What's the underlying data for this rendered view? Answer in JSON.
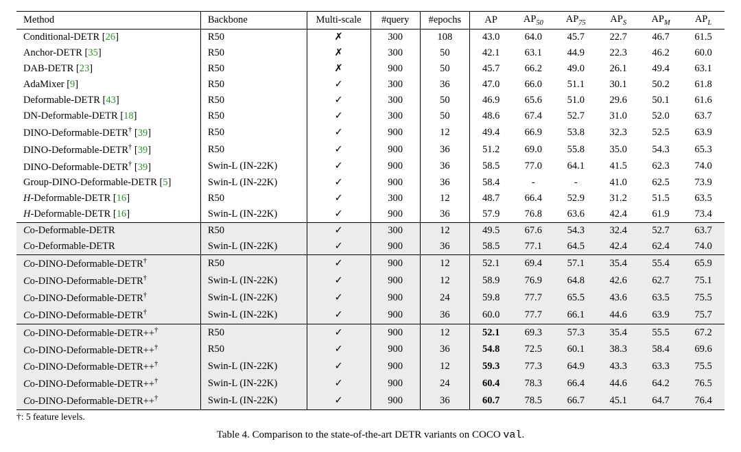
{
  "headers": {
    "method": "Method",
    "backbone": "Backbone",
    "multiscale": "Multi-scale",
    "query": "#query",
    "epochs": "#epochs",
    "ap": "AP",
    "ap50_pre": "AP",
    "ap50_sub": "50",
    "ap75_pre": "AP",
    "ap75_sub": "75",
    "aps_pre": "AP",
    "aps_sub": "S",
    "apm_pre": "AP",
    "apm_sub": "M",
    "apl_pre": "AP",
    "apl_sub": "L"
  },
  "symbols": {
    "check": "✓",
    "cross": "✗",
    "dagger": "†",
    "dash": "-"
  },
  "caption": {
    "pre": "Table 4. Comparison to the state-of-the-art DETR variants on COCO ",
    "code": "val",
    "post": "."
  },
  "footnote": "†: 5 feature levels.",
  "groups": [
    {
      "shade": false,
      "rows": [
        {
          "method_html": "Conditional-DETR [<span class='cite'>26</span>]",
          "backbone": "R50",
          "ms": "cross",
          "query": "300",
          "epochs": "108",
          "ap": "43.0",
          "ap50": "64.0",
          "ap75": "45.7",
          "aps": "22.7",
          "apm": "46.7",
          "apl": "61.5"
        },
        {
          "method_html": "Anchor-DETR [<span class='cite'>35</span>]",
          "backbone": "R50",
          "ms": "cross",
          "query": "300",
          "epochs": "50",
          "ap": "42.1",
          "ap50": "63.1",
          "ap75": "44.9",
          "aps": "22.3",
          "apm": "46.2",
          "apl": "60.0"
        },
        {
          "method_html": "DAB-DETR [<span class='cite'>23</span>]",
          "backbone": "R50",
          "ms": "cross",
          "query": "900",
          "epochs": "50",
          "ap": "45.7",
          "ap50": "66.2",
          "ap75": "49.0",
          "aps": "26.1",
          "apm": "49.4",
          "apl": "63.1"
        },
        {
          "method_html": "AdaMixer [<span class='cite'>9</span>]",
          "backbone": "R50",
          "ms": "check",
          "query": "300",
          "epochs": "36",
          "ap": "47.0",
          "ap50": "66.0",
          "ap75": "51.1",
          "aps": "30.1",
          "apm": "50.2",
          "apl": "61.8"
        },
        {
          "method_html": "Deformable-DETR [<span class='cite'>43</span>]",
          "backbone": "R50",
          "ms": "check",
          "query": "300",
          "epochs": "50",
          "ap": "46.9",
          "ap50": "65.6",
          "ap75": "51.0",
          "aps": "29.6",
          "apm": "50.1",
          "apl": "61.6"
        },
        {
          "method_html": "DN-Deformable-DETR [<span class='cite'>18</span>]",
          "backbone": "R50",
          "ms": "check",
          "query": "300",
          "epochs": "50",
          "ap": "48.6",
          "ap50": "67.4",
          "ap75": "52.7",
          "aps": "31.0",
          "apm": "52.0",
          "apl": "63.7"
        },
        {
          "method_html": "DINO-Deformable-DETR<span class='sup'>†</span> [<span class='cite'>39</span>]",
          "backbone": "R50",
          "ms": "check",
          "query": "900",
          "epochs": "12",
          "ap": "49.4",
          "ap50": "66.9",
          "ap75": "53.8",
          "aps": "32.3",
          "apm": "52.5",
          "apl": "63.9"
        },
        {
          "method_html": "DINO-Deformable-DETR<span class='sup'>†</span> [<span class='cite'>39</span>]",
          "backbone": "R50",
          "ms": "check",
          "query": "900",
          "epochs": "36",
          "ap": "51.2",
          "ap50": "69.0",
          "ap75": "55.8",
          "aps": "35.0",
          "apm": "54.3",
          "apl": "65.3"
        },
        {
          "method_html": "DINO-Deformable-DETR<span class='sup'>†</span> [<span class='cite'>39</span>]",
          "backbone": "Swin-L (IN-22K)",
          "ms": "check",
          "query": "900",
          "epochs": "36",
          "ap": "58.5",
          "ap50": "77.0",
          "ap75": "64.1",
          "aps": "41.5",
          "apm": "62.3",
          "apl": "74.0"
        },
        {
          "method_html": "Group-DINO-Deformable-DETR [<span class='cite'>5</span>]",
          "backbone": "Swin-L (IN-22K)",
          "ms": "check",
          "query": "900",
          "epochs": "36",
          "ap": "58.4",
          "ap50": "-",
          "ap75": "-",
          "aps": "41.0",
          "apm": "62.5",
          "apl": "73.9"
        },
        {
          "method_html": "<span class='scriptH'>H</span>-Deformable-DETR [<span class='cite'>16</span>]",
          "backbone": "R50",
          "ms": "check",
          "query": "300",
          "epochs": "12",
          "ap": "48.7",
          "ap50": "66.4",
          "ap75": "52.9",
          "aps": "31.2",
          "apm": "51.5",
          "apl": "63.5"
        },
        {
          "method_html": "<span class='scriptH'>H</span>-Deformable-DETR [<span class='cite'>16</span>]",
          "backbone": "Swin-L (IN-22K)",
          "ms": "check",
          "query": "900",
          "epochs": "36",
          "ap": "57.9",
          "ap50": "76.8",
          "ap75": "63.6",
          "aps": "42.4",
          "apm": "61.9",
          "apl": "73.4"
        }
      ]
    },
    {
      "shade": true,
      "rows": [
        {
          "method_html": "<span class='scriptC'>C</span>o-Deformable-DETR",
          "backbone": "R50",
          "ms": "check",
          "query": "300",
          "epochs": "12",
          "ap": "49.5",
          "ap50": "67.6",
          "ap75": "54.3",
          "aps": "32.4",
          "apm": "52.7",
          "apl": "63.7"
        },
        {
          "method_html": "<span class='scriptC'>C</span>o-Deformable-DETR",
          "backbone": "Swin-L (IN-22K)",
          "ms": "check",
          "query": "900",
          "epochs": "36",
          "ap": "58.5",
          "ap50": "77.1",
          "ap75": "64.5",
          "aps": "42.4",
          "apm": "62.4",
          "apl": "74.0"
        }
      ]
    },
    {
      "shade": true,
      "rows": [
        {
          "method_html": "<span class='scriptC'>C</span>o-DINO-Deformable-DETR<span class='sup'>†</span>",
          "backbone": "R50",
          "ms": "check",
          "query": "900",
          "epochs": "12",
          "ap": "52.1",
          "ap50": "69.4",
          "ap75": "57.1",
          "aps": "35.4",
          "apm": "55.4",
          "apl": "65.9"
        },
        {
          "method_html": "<span class='scriptC'>C</span>o-DINO-Deformable-DETR<span class='sup'>†</span>",
          "backbone": "Swin-L (IN-22K)",
          "ms": "check",
          "query": "900",
          "epochs": "12",
          "ap": "58.9",
          "ap50": "76.9",
          "ap75": "64.8",
          "aps": "42.6",
          "apm": "62.7",
          "apl": "75.1"
        },
        {
          "method_html": "<span class='scriptC'>C</span>o-DINO-Deformable-DETR<span class='sup'>†</span>",
          "backbone": "Swin-L (IN-22K)",
          "ms": "check",
          "query": "900",
          "epochs": "24",
          "ap": "59.8",
          "ap50": "77.7",
          "ap75": "65.5",
          "aps": "43.6",
          "apm": "63.5",
          "apl": "75.5"
        },
        {
          "method_html": "<span class='scriptC'>C</span>o-DINO-Deformable-DETR<span class='sup'>†</span>",
          "backbone": "Swin-L (IN-22K)",
          "ms": "check",
          "query": "900",
          "epochs": "36",
          "ap": "60.0",
          "ap50": "77.7",
          "ap75": "66.1",
          "aps": "44.6",
          "apm": "63.9",
          "apl": "75.7"
        }
      ]
    },
    {
      "shade": true,
      "rows": [
        {
          "method_html": "<span class='scriptC'>C</span>o-DINO-Deformable-DETR++<span class='sup'>†</span>",
          "backbone": "R50",
          "ms": "check",
          "query": "900",
          "epochs": "12",
          "ap_bold": true,
          "ap": "52.1",
          "ap50": "69.3",
          "ap75": "57.3",
          "aps": "35.4",
          "apm": "55.5",
          "apl": "67.2"
        },
        {
          "method_html": "<span class='scriptC'>C</span>o-DINO-Deformable-DETR++<span class='sup'>†</span>",
          "backbone": "R50",
          "ms": "check",
          "query": "900",
          "epochs": "36",
          "ap_bold": true,
          "ap": "54.8",
          "ap50": "72.5",
          "ap75": "60.1",
          "aps": "38.3",
          "apm": "58.4",
          "apl": "69.6"
        },
        {
          "method_html": "<span class='scriptC'>C</span>o-DINO-Deformable-DETR++<span class='sup'>†</span>",
          "backbone": "Swin-L (IN-22K)",
          "ms": "check",
          "query": "900",
          "epochs": "12",
          "ap_bold": true,
          "ap": "59.3",
          "ap50": "77.3",
          "ap75": "64.9",
          "aps": "43.3",
          "apm": "63.3",
          "apl": "75.5"
        },
        {
          "method_html": "<span class='scriptC'>C</span>o-DINO-Deformable-DETR++<span class='sup'>†</span>",
          "backbone": "Swin-L (IN-22K)",
          "ms": "check",
          "query": "900",
          "epochs": "24",
          "ap_bold": true,
          "ap": "60.4",
          "ap50": "78.3",
          "ap75": "66.4",
          "aps": "44.6",
          "apm": "64.2",
          "apl": "76.5"
        },
        {
          "method_html": "<span class='scriptC'>C</span>o-DINO-Deformable-DETR++<span class='sup'>†</span>",
          "backbone": "Swin-L (IN-22K)",
          "ms": "check",
          "query": "900",
          "epochs": "36",
          "ap_bold": true,
          "ap": "60.7",
          "ap50": "78.5",
          "ap75": "66.7",
          "aps": "45.1",
          "apm": "64.7",
          "apl": "76.4"
        }
      ]
    }
  ]
}
